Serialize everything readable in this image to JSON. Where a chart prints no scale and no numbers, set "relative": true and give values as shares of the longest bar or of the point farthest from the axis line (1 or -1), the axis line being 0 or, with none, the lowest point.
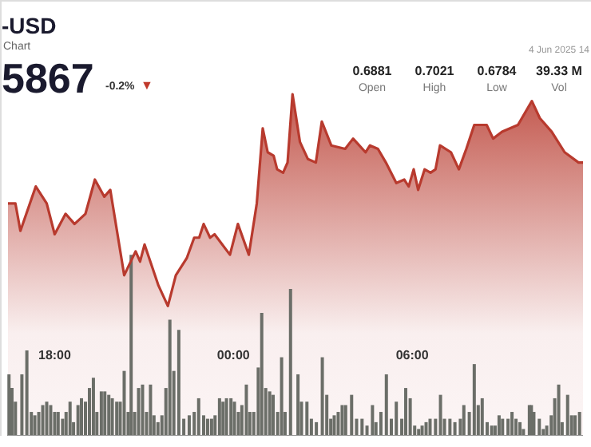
{
  "chart_data": {
    "type": "area",
    "title": "-USD",
    "subtitle": "Chart",
    "relative": true,
    "annotations": [
      "5867",
      "-0.2%",
      "▼",
      "0.6881",
      "Open",
      "0.7021",
      "High",
      "0.6784",
      "Low",
      "39.33 M",
      "Vol",
      "4 Jun 2025 14"
    ],
    "xlim": [
      "2025-06-03T16:26",
      "2025-06-04T11:44"
    ],
    "xticks": [
      {
        "value": "2025-06-03T18:00",
        "label": "18:00"
      },
      {
        "value": "2025-06-04T00:00",
        "label": "00:00"
      },
      {
        "value": "2025-06-04T06:00",
        "label": "06:00"
      }
    ],
    "series": [
      {
        "color": "#b83a2e",
        "x": [
          "2025-06-03T16:26",
          "2025-06-03T16:41",
          "2025-06-03T16:51",
          "2025-06-03T17:22",
          "2025-06-03T17:44",
          "2025-06-03T18:00",
          "2025-06-03T18:22",
          "2025-06-03T18:40",
          "2025-06-03T19:02",
          "2025-06-03T19:21",
          "2025-06-03T19:40",
          "2025-06-03T19:52",
          "2025-06-03T20:20",
          "2025-06-03T20:43",
          "2025-06-03T20:52",
          "2025-06-03T21:01",
          "2025-06-03T21:29",
          "2025-06-03T21:48",
          "2025-06-03T22:04",
          "2025-06-03T22:26",
          "2025-06-03T22:41",
          "2025-06-03T22:51",
          "2025-06-03T23:00",
          "2025-06-03T23:13",
          "2025-06-03T23:22",
          "2025-06-03T23:53",
          "2025-06-04T00:09",
          "2025-06-04T00:31",
          "2025-06-04T00:47",
          "2025-06-04T00:59",
          "2025-06-04T01:09",
          "2025-06-04T01:21",
          "2025-06-04T01:28",
          "2025-06-04T01:40",
          "2025-06-04T01:49",
          "2025-06-04T01:59",
          "2025-06-04T02:14",
          "2025-06-04T02:30",
          "2025-06-04T02:46",
          "2025-06-04T02:58",
          "2025-06-04T03:17",
          "2025-06-04T03:45",
          "2025-06-04T04:01",
          "2025-06-04T04:26",
          "2025-06-04T04:35",
          "2025-06-04T04:51",
          "2025-06-04T05:07",
          "2025-06-04T05:28",
          "2025-06-04T05:44",
          "2025-06-04T05:53",
          "2025-06-04T06:03",
          "2025-06-04T06:12",
          "2025-06-04T06:25",
          "2025-06-04T06:37",
          "2025-06-04T06:47",
          "2025-06-04T06:56",
          "2025-06-04T07:18",
          "2025-06-04T07:34",
          "2025-06-04T07:49",
          "2025-06-04T08:05",
          "2025-06-04T08:30",
          "2025-06-04T08:43",
          "2025-06-04T09:01",
          "2025-06-04T09:33",
          "2025-06-04T10:01",
          "2025-06-04T10:17",
          "2025-06-04T10:41",
          "2025-06-04T11:07",
          "2025-06-04T11:35",
          "2025-06-04T11:44"
        ],
        "values": [
          0.68,
          0.68,
          0.6,
          0.73,
          0.68,
          0.59,
          0.65,
          0.62,
          0.65,
          0.75,
          0.7,
          0.72,
          0.47,
          0.54,
          0.51,
          0.56,
          0.44,
          0.38,
          0.47,
          0.52,
          0.58,
          0.58,
          0.62,
          0.58,
          0.59,
          0.53,
          0.62,
          0.53,
          0.68,
          0.9,
          0.83,
          0.82,
          0.78,
          0.77,
          0.8,
          1,
          0.86,
          0.81,
          0.8,
          0.92,
          0.85,
          0.84,
          0.87,
          0.83,
          0.85,
          0.84,
          0.8,
          0.74,
          0.75,
          0.73,
          0.78,
          0.72,
          0.78,
          0.77,
          0.78,
          0.85,
          0.83,
          0.78,
          0.84,
          0.91,
          0.91,
          0.87,
          0.89,
          0.91,
          0.98,
          0.93,
          0.89,
          0.83,
          0.8,
          0.8
        ]
      },
      {
        "type": "bar",
        "color": "#6b6e68",
        "x": [
          "2025-06-03T16:28",
          "2025-06-03T16:34",
          "2025-06-03T16:41",
          "2025-06-03T16:54",
          "2025-06-03T17:04",
          "2025-06-03T17:13",
          "2025-06-03T17:20",
          "2025-06-03T17:28",
          "2025-06-03T17:36",
          "2025-06-03T17:44",
          "2025-06-03T17:52",
          "2025-06-03T18:00",
          "2025-06-03T18:07",
          "2025-06-03T18:16",
          "2025-06-03T18:23",
          "2025-06-03T18:31",
          "2025-06-03T18:38",
          "2025-06-03T18:47",
          "2025-06-03T18:54",
          "2025-06-03T19:02",
          "2025-06-03T19:10",
          "2025-06-03T19:18",
          "2025-06-03T19:25",
          "2025-06-03T19:34",
          "2025-06-03T19:41",
          "2025-06-03T19:49",
          "2025-06-03T19:56",
          "2025-06-03T20:05",
          "2025-06-03T20:12",
          "2025-06-03T20:20",
          "2025-06-03T20:28",
          "2025-06-03T20:34",
          "2025-06-03T20:41",
          "2025-06-03T20:49",
          "2025-06-03T20:57",
          "2025-06-03T21:05",
          "2025-06-03T21:13",
          "2025-06-03T21:20",
          "2025-06-03T21:28",
          "2025-06-03T21:36",
          "2025-06-03T21:44",
          "2025-06-03T21:52",
          "2025-06-03T22:00",
          "2025-06-03T22:10",
          "2025-06-03T22:20",
          "2025-06-03T22:31",
          "2025-06-03T22:41",
          "2025-06-03T22:50",
          "2025-06-03T23:00",
          "2025-06-03T23:08",
          "2025-06-03T23:16",
          "2025-06-03T23:23",
          "2025-06-03T23:32",
          "2025-06-03T23:39",
          "2025-06-03T23:46",
          "2025-06-03T23:55",
          "2025-06-04T00:02",
          "2025-06-04T00:10",
          "2025-06-04T00:17",
          "2025-06-04T00:26",
          "2025-06-04T00:33",
          "2025-06-04T00:41",
          "2025-06-04T00:50",
          "2025-06-04T00:57",
          "2025-06-04T01:05",
          "2025-06-04T01:13",
          "2025-06-04T01:20",
          "2025-06-04T01:29",
          "2025-06-04T01:37",
          "2025-06-04T01:44",
          "2025-06-04T01:55",
          "2025-06-04T02:10",
          "2025-06-04T02:17",
          "2025-06-04T02:28",
          "2025-06-04T02:37",
          "2025-06-04T02:47",
          "2025-06-04T02:59",
          "2025-06-04T03:08",
          "2025-06-04T03:16",
          "2025-06-04T03:23",
          "2025-06-04T03:31",
          "2025-06-04T03:39",
          "2025-06-04T03:46",
          "2025-06-04T03:58",
          "2025-06-04T04:08",
          "2025-06-04T04:19",
          "2025-06-04T04:29",
          "2025-06-04T04:40",
          "2025-06-04T04:47",
          "2025-06-04T04:57",
          "2025-06-04T05:08",
          "2025-06-04T05:18",
          "2025-06-04T05:28",
          "2025-06-04T05:39",
          "2025-06-04T05:47",
          "2025-06-04T05:56",
          "2025-06-04T06:05",
          "2025-06-04T06:13",
          "2025-06-04T06:20",
          "2025-06-04T06:28",
          "2025-06-04T06:36",
          "2025-06-04T06:47",
          "2025-06-04T06:57",
          "2025-06-04T07:05",
          "2025-06-04T07:16",
          "2025-06-04T07:26",
          "2025-06-04T07:37",
          "2025-06-04T07:44",
          "2025-06-04T07:55",
          "2025-06-04T08:05",
          "2025-06-04T08:13",
          "2025-06-04T08:21",
          "2025-06-04T08:31",
          "2025-06-04T08:40",
          "2025-06-04T08:47",
          "2025-06-04T08:55",
          "2025-06-04T09:02",
          "2025-06-04T09:13",
          "2025-06-04T09:21",
          "2025-06-04T09:29",
          "2025-06-04T09:37",
          "2025-06-04T09:44",
          "2025-06-04T09:56",
          "2025-06-04T10:00",
          "2025-06-04T10:05",
          "2025-06-04T10:16",
          "2025-06-04T10:24",
          "2025-06-04T10:31",
          "2025-06-04T10:40",
          "2025-06-04T10:47",
          "2025-06-04T10:55",
          "2025-06-04T11:02",
          "2025-06-04T11:13",
          "2025-06-04T11:21",
          "2025-06-04T11:28",
          "2025-06-04T11:37"
        ],
        "values": [
          0.18,
          0.14,
          0.1,
          0.18,
          0.25,
          0.07,
          0.06,
          0.07,
          0.09,
          0.1,
          0.09,
          0.07,
          0.07,
          0.05,
          0.07,
          0.1,
          0.04,
          0.09,
          0.11,
          0.1,
          0.14,
          0.17,
          0.07,
          0.13,
          0.13,
          0.12,
          0.11,
          0.1,
          0.1,
          0.19,
          0.07,
          0.53,
          0.07,
          0.14,
          0.15,
          0.07,
          0.15,
          0.06,
          0.04,
          0.06,
          0.14,
          0.34,
          0.19,
          0.31,
          0.05,
          0.06,
          0.07,
          0.11,
          0.06,
          0.05,
          0.05,
          0.06,
          0.11,
          0.1,
          0.11,
          0.11,
          0.1,
          0.07,
          0.09,
          0.15,
          0.07,
          0.07,
          0.2,
          0.36,
          0.14,
          0.13,
          0.12,
          0.07,
          0.23,
          0.07,
          0.43,
          0.18,
          0.1,
          0.1,
          0.05,
          0.04,
          0.23,
          0.12,
          0.05,
          0.06,
          0.07,
          0.09,
          0.09,
          0.12,
          0.05,
          0.05,
          0.03,
          0.09,
          0.04,
          0.07,
          0.18,
          0.05,
          0.1,
          0.05,
          0.14,
          0.11,
          0.03,
          0.02,
          0.03,
          0.04,
          0.05,
          0.05,
          0.12,
          0.05,
          0.05,
          0.04,
          0.05,
          0.09,
          0.07,
          0.21,
          0.09,
          0.11,
          0.04,
          0.03,
          0.03,
          0.06,
          0.05,
          0.05,
          0.07,
          0.05,
          0.04,
          0.02,
          0.09,
          0.09,
          0.07,
          0.05,
          0.02,
          0.03,
          0.06,
          0.11,
          0.15,
          0.04,
          0.12,
          0.06,
          0.06,
          0.07
        ]
      }
    ]
  }
}
